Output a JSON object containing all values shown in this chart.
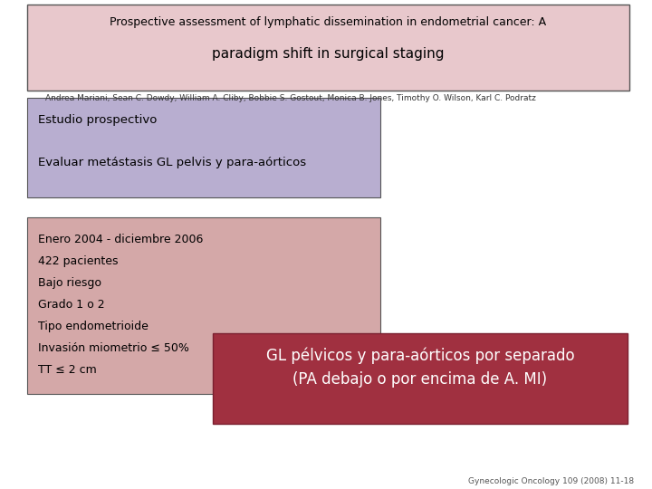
{
  "title_line1": "Prospective assessment of lymphatic dissemination in endometrial cancer: A",
  "title_line2": "paradigm shift in surgical staging",
  "title_box_color": "#e8c8cc",
  "title_box_edge": "#555555",
  "authors": "Andrea Mariani, Sean C. Dowdy, William A. Cliby, Bobbie S. Gostout, Monica B. Jones, Timothy O. Wilson, Karl C. Podratz",
  "authors_fontsize": 6.5,
  "box1_text_line1": "Estudio prospectivo",
  "box1_text_line2": "Evaluar metástasis GL pelvis y para-aórticos",
  "box1_color": "#b8aed0",
  "box1_edge": "#555555",
  "box2_lines": [
    "Enero 2004 - diciembre 2006",
    "422 pacientes",
    "Bajo riesgo",
    "Grado 1 o 2",
    "Tipo endometrioide",
    "Invasión miometrio ≤ 50%",
    "TT ≤ 2 cm"
  ],
  "box2_color": "#d4a8a8",
  "box2_edge": "#555555",
  "box3_text": "GL pélvicos y para-aórticos por separado\n(PA debajo o por encima de A. MI)",
  "box3_color": "#a03040",
  "box3_edge": "#7a2030",
  "box3_text_color": "#ffffff",
  "footer": "Gynecologic Oncology 109 (2008) 11-18",
  "footer_fontsize": 6.5,
  "bg_color": "#ffffff"
}
